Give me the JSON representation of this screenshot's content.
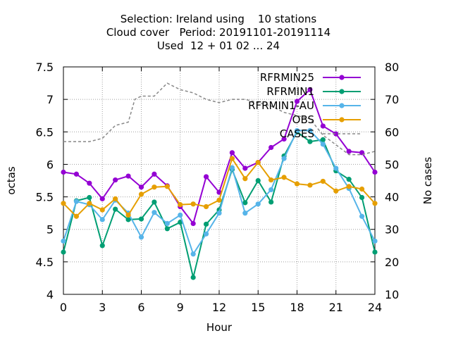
{
  "chart_data": {
    "type": "line",
    "title_lines": [
      "Selection: Ireland using    10 stations",
      "Cloud cover   Period: 20191101-20191114",
      "Used  12 + 01 02 ... 24"
    ],
    "xlabel": "Hour",
    "ylabel": "octas",
    "y2label": "No cases",
    "xlim": [
      0,
      24
    ],
    "ylim": [
      4,
      7.5
    ],
    "y2lim": [
      10,
      80
    ],
    "xticks": [
      "0",
      "3",
      "6",
      "9",
      "12",
      "15",
      "18",
      "21",
      "24"
    ],
    "yticks": [
      "4",
      "4.5",
      "5",
      "5.5",
      "6",
      "6.5",
      "7",
      "7.5"
    ],
    "y2ticks": [
      "10",
      "20",
      "30",
      "40",
      "50",
      "60",
      "70",
      "80"
    ],
    "grid": true,
    "legend_position": "top-right",
    "x": [
      0,
      1,
      2,
      3,
      4,
      5,
      6,
      7,
      8,
      9,
      10,
      11,
      12,
      13,
      14,
      15,
      16,
      17,
      18,
      19,
      20,
      21,
      22,
      23,
      24
    ],
    "series": [
      {
        "name": "RFRMIN25",
        "color": "#9400d3",
        "marker": "circle",
        "values": [
          5.88,
          5.85,
          5.71,
          5.47,
          5.76,
          5.82,
          5.65,
          5.85,
          5.67,
          5.35,
          5.09,
          5.81,
          5.57,
          6.18,
          5.94,
          6.03,
          6.26,
          6.39,
          6.97,
          7.15,
          6.59,
          6.47,
          6.2,
          6.18,
          5.88
        ]
      },
      {
        "name": "RFRMIN1",
        "color": "#009e73",
        "marker": "circle",
        "values": [
          4.65,
          5.44,
          5.49,
          4.75,
          5.31,
          5.15,
          5.16,
          5.42,
          5.01,
          5.11,
          4.26,
          5.08,
          5.3,
          5.92,
          5.41,
          5.75,
          5.42,
          6.13,
          6.5,
          6.35,
          6.38,
          5.9,
          5.77,
          5.49,
          4.65
        ]
      },
      {
        "name": "RFRMIN1-AU",
        "color": "#56b4e9",
        "marker": "circle",
        "values": [
          4.82,
          5.43,
          5.38,
          5.15,
          5.45,
          5.25,
          4.88,
          5.26,
          5.09,
          5.22,
          4.62,
          4.93,
          5.25,
          5.95,
          5.25,
          5.39,
          5.61,
          6.09,
          6.52,
          6.52,
          6.31,
          5.94,
          5.63,
          5.2,
          4.82
        ]
      },
      {
        "name": "OBS",
        "color": "#e69f00",
        "marker": "circle",
        "values": [
          5.4,
          5.2,
          5.4,
          5.3,
          5.47,
          5.22,
          5.54,
          5.65,
          5.66,
          5.38,
          5.39,
          5.35,
          5.45,
          6.09,
          5.78,
          6.03,
          5.76,
          5.8,
          5.7,
          5.68,
          5.74,
          5.59,
          5.66,
          5.62,
          5.4
        ]
      },
      {
        "name": "CASES",
        "color": "#888888",
        "axis": "y2",
        "style": "dashed",
        "x": [
          0,
          1,
          2,
          3,
          4,
          5,
          5.5,
          6,
          7,
          8,
          9,
          10,
          11,
          12,
          13,
          14,
          15,
          16,
          17,
          18,
          19,
          20,
          21,
          22,
          23,
          24
        ],
        "values": [
          57,
          57,
          57,
          58,
          62,
          63,
          70,
          71,
          71,
          75,
          73,
          72,
          70,
          69,
          70,
          70,
          69,
          68,
          66,
          65,
          64,
          59,
          56,
          53,
          53,
          54
        ]
      }
    ]
  }
}
